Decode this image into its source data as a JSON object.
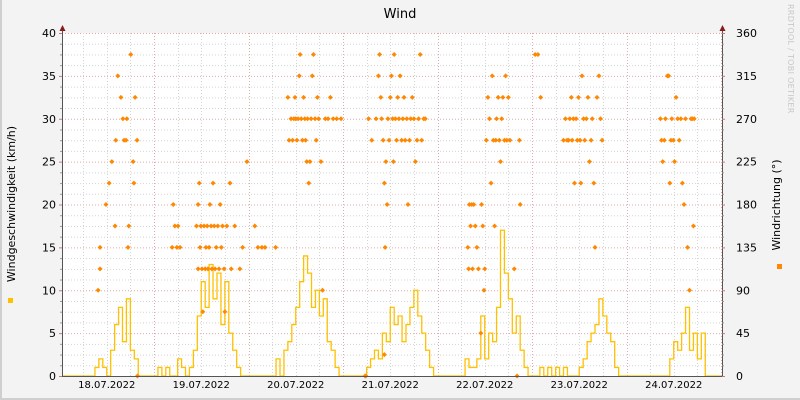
{
  "chart_data": {
    "type": "line+scatter",
    "title": "Wind",
    "ylabel_left": "Windgeschwindigkeit (km/h)",
    "ylabel_right": "Windrichtung (°)",
    "watermark": "RRDTOOL / TOBI OETIKER",
    "ylim_left": [
      0,
      40
    ],
    "ylim_right": [
      0,
      360
    ],
    "yticks_left": [
      "0",
      "5",
      "10",
      "15",
      "20",
      "25",
      "30",
      "35",
      "40"
    ],
    "yticks_right": [
      "0",
      "45",
      "90",
      "135",
      "180",
      "225",
      "270",
      "315",
      "360"
    ],
    "xtick_labels": [
      "18.07.2022",
      "19.07.2022",
      "20.07.2022",
      "21.07.2022",
      "22.07.2022",
      "23.07.2022",
      "24.07.2022"
    ],
    "grid": true,
    "colors": {
      "speed": "#ffc000",
      "direction": "#ff8800",
      "major_grid": "#e2a8a8",
      "minor_grid": "#d4d4d4",
      "axis": "#555555",
      "arrow": "#8b1a1a"
    },
    "speed_hourly": [
      {
        "date": "18.07.2022",
        "values": [
          0,
          0,
          0,
          0,
          0,
          0,
          0,
          0,
          0,
          1,
          2,
          1,
          0,
          3,
          6,
          8,
          4,
          9,
          3,
          2,
          0,
          0,
          0,
          0
        ]
      },
      {
        "date": "19.07.2022",
        "values": [
          0,
          1,
          0,
          1,
          0,
          0,
          2,
          1,
          0,
          1,
          3,
          7,
          11,
          8,
          13,
          9,
          12,
          6,
          11,
          5,
          3,
          1,
          0,
          0
        ]
      },
      {
        "date": "20.07.2022",
        "values": [
          0,
          0,
          0,
          0,
          0,
          0,
          0,
          2,
          0,
          3,
          4,
          6,
          8,
          11,
          14,
          12,
          8,
          10,
          7,
          9,
          4,
          3,
          1,
          0
        ]
      },
      {
        "date": "21.07.2022",
        "values": [
          0,
          0,
          0,
          0,
          0,
          0,
          1,
          2,
          3,
          2,
          5,
          4,
          8,
          6,
          7,
          4,
          6,
          8,
          10,
          7,
          5,
          3,
          1,
          0
        ]
      },
      {
        "date": "22.07.2022",
        "values": [
          0,
          0,
          0,
          0,
          0,
          0,
          0,
          2,
          1,
          1,
          2,
          7,
          2,
          5,
          4,
          8,
          17,
          12,
          9,
          5,
          7,
          3,
          1,
          0
        ]
      },
      {
        "date": "23.07.2022",
        "values": [
          0,
          0,
          1,
          0,
          1,
          0,
          1,
          0,
          1,
          0,
          0,
          0,
          1,
          2,
          4,
          5,
          6,
          9,
          7,
          5,
          4,
          1,
          0,
          0
        ]
      },
      {
        "date": "24.07.2022",
        "values": [
          0,
          0,
          0,
          0,
          0,
          0,
          0,
          0,
          0,
          0,
          0,
          2,
          4,
          3,
          5,
          8,
          3,
          5,
          2,
          5,
          0,
          0,
          0,
          0
        ]
      }
    ],
    "direction_points": [
      {
        "date": "18.07.2022",
        "points": [
          [
            9.8,
            90
          ],
          [
            10.3,
            112.5
          ],
          [
            10.3,
            135
          ],
          [
            11.8,
            180
          ],
          [
            12.6,
            202.5
          ],
          [
            13.3,
            225
          ],
          [
            14.1,
            157.5
          ],
          [
            14.3,
            247.5
          ],
          [
            14.8,
            315
          ],
          [
            15.6,
            292.5
          ],
          [
            16.1,
            270
          ],
          [
            16.4,
            247.5
          ],
          [
            16.9,
            247.5
          ],
          [
            17.1,
            270
          ],
          [
            17.4,
            135
          ],
          [
            17.6,
            157.5
          ],
          [
            18.1,
            337.5
          ],
          [
            18.7,
            225
          ],
          [
            18.9,
            202.5
          ],
          [
            19.2,
            292.5
          ],
          [
            19.7,
            247.5
          ],
          [
            19.8,
            0
          ]
        ]
      },
      {
        "date": "19.07.2022",
        "points": [
          [
            4.6,
            135
          ],
          [
            4.9,
            180
          ],
          [
            5.3,
            157.5
          ],
          [
            5.8,
            135
          ],
          [
            6.1,
            157.5
          ],
          [
            6.6,
            135
          ],
          [
            10.8,
            157.5
          ],
          [
            11.2,
            112.5
          ],
          [
            11.2,
            180
          ],
          [
            11.5,
            202.5
          ],
          [
            11.7,
            135
          ],
          [
            11.9,
            157.5
          ],
          [
            12.2,
            112.5
          ],
          [
            12.4,
            67.5
          ],
          [
            12.7,
            157.5
          ],
          [
            13,
            112.5
          ],
          [
            13.2,
            135
          ],
          [
            13.5,
            157.5
          ],
          [
            13.7,
            112.5
          ],
          [
            14,
            135
          ],
          [
            14.2,
            180
          ],
          [
            14.5,
            157.5
          ],
          [
            14.7,
            112.5
          ],
          [
            15,
            202.5
          ],
          [
            15.3,
            157.5
          ],
          [
            15.5,
            112.5
          ],
          [
            15.8,
            135
          ],
          [
            16.2,
            157.5
          ],
          [
            16.5,
            112.5
          ],
          [
            16.8,
            180
          ],
          [
            17.1,
            135
          ],
          [
            17.4,
            157.5
          ],
          [
            17.8,
            112.5
          ],
          [
            18,
            67.5
          ],
          [
            18.5,
            157.5
          ],
          [
            19.3,
            202.5
          ],
          [
            19.6,
            112.5
          ],
          [
            20.5,
            157.5
          ],
          [
            21.8,
            112.5
          ],
          [
            22.5,
            135
          ],
          [
            23.6,
            225
          ]
        ]
      },
      {
        "date": "20.07.2022",
        "points": [
          [
            1.6,
            157.5
          ],
          [
            2.4,
            135
          ],
          [
            3.4,
            135
          ],
          [
            4.2,
            135
          ],
          [
            6.9,
            135
          ],
          [
            10,
            292.5
          ],
          [
            10.3,
            247.5
          ],
          [
            10.8,
            270
          ],
          [
            11.2,
            247.5
          ],
          [
            11.5,
            270
          ],
          [
            11.8,
            292.5
          ],
          [
            12,
            270
          ],
          [
            12.3,
            247.5
          ],
          [
            12.6,
            270
          ],
          [
            12.9,
            315
          ],
          [
            13.1,
            337.5
          ],
          [
            13.4,
            270
          ],
          [
            13.7,
            247.5
          ],
          [
            14,
            292.5
          ],
          [
            14.3,
            270
          ],
          [
            14.5,
            247.5
          ],
          [
            14.8,
            225
          ],
          [
            15,
            270
          ],
          [
            15.3,
            202.5
          ],
          [
            15.6,
            225
          ],
          [
            15.9,
            270
          ],
          [
            16.2,
            315
          ],
          [
            16.5,
            337.5
          ],
          [
            16.9,
            270
          ],
          [
            17.2,
            247.5
          ],
          [
            17.5,
            292.5
          ],
          [
            17.8,
            270
          ],
          [
            18.4,
            225
          ],
          [
            18.8,
            90
          ],
          [
            19.5,
            270
          ],
          [
            20.2,
            270
          ],
          [
            20.8,
            292.5
          ],
          [
            21.5,
            270
          ],
          [
            22.4,
            270
          ],
          [
            23.5,
            270
          ]
        ]
      },
      {
        "date": "21.07.2022",
        "points": [
          [
            5.6,
            0
          ],
          [
            5.8,
            0
          ],
          [
            6.5,
            270
          ],
          [
            7.3,
            247.5
          ],
          [
            8.4,
            270
          ],
          [
            9,
            315
          ],
          [
            9.3,
            337.5
          ],
          [
            9.6,
            292.5
          ],
          [
            9.8,
            270
          ],
          [
            10.2,
            247.5
          ],
          [
            10.5,
            202.5
          ],
          [
            10.5,
            22.5
          ],
          [
            10.7,
            135
          ],
          [
            10.9,
            225
          ],
          [
            11.2,
            180
          ],
          [
            11.4,
            270
          ],
          [
            11.7,
            247.5
          ],
          [
            12,
            292.5
          ],
          [
            12.3,
            315
          ],
          [
            12.6,
            270
          ],
          [
            12.8,
            225
          ],
          [
            13,
            337.5
          ],
          [
            13.3,
            270
          ],
          [
            13.6,
            247.5
          ],
          [
            13.9,
            292.5
          ],
          [
            14.2,
            270
          ],
          [
            14.5,
            315
          ],
          [
            14.9,
            247.5
          ],
          [
            15.2,
            270
          ],
          [
            15.5,
            292.5
          ],
          [
            15.8,
            247.5
          ],
          [
            16.2,
            270
          ],
          [
            16.5,
            180
          ],
          [
            16.9,
            247.5
          ],
          [
            17.2,
            270
          ],
          [
            17.6,
            292.5
          ],
          [
            18,
            270
          ],
          [
            18.4,
            225
          ],
          [
            18.8,
            247.5
          ],
          [
            19.2,
            270
          ],
          [
            19.6,
            337.5
          ],
          [
            20,
            247.5
          ],
          [
            20.5,
            270
          ],
          [
            20.9,
            270
          ]
        ]
      },
      {
        "date": "22.07.2022",
        "points": [
          [
            7.7,
            135
          ],
          [
            7.9,
            112.5
          ],
          [
            8.1,
            180
          ],
          [
            8.4,
            157.5
          ],
          [
            8.7,
            180
          ],
          [
            8.9,
            112.5
          ],
          [
            9.2,
            180
          ],
          [
            9.6,
            157.5
          ],
          [
            10,
            135
          ],
          [
            10.4,
            112.5
          ],
          [
            11,
            45
          ],
          [
            11.2,
            180
          ],
          [
            11.5,
            157.5
          ],
          [
            11.8,
            90
          ],
          [
            12,
            112.5
          ],
          [
            12.4,
            247.5
          ],
          [
            12.8,
            292.5
          ],
          [
            13.2,
            270
          ],
          [
            13.6,
            202.5
          ],
          [
            13.9,
            315
          ],
          [
            14.2,
            247.5
          ],
          [
            14.5,
            157.5
          ],
          [
            14.8,
            247.5
          ],
          [
            15,
            270
          ],
          [
            15.4,
            292.5
          ],
          [
            15.7,
            247.5
          ],
          [
            16,
            225
          ],
          [
            16.3,
            270
          ],
          [
            16.6,
            292.5
          ],
          [
            17,
            247.5
          ],
          [
            17.3,
            315
          ],
          [
            17.6,
            247.5
          ],
          [
            18,
            292.5
          ],
          [
            18.4,
            247.5
          ],
          [
            19.5,
            112.5
          ],
          [
            20.2,
            0
          ],
          [
            20.8,
            247.5
          ],
          [
            21,
            180
          ]
        ]
      },
      {
        "date": "23.07.2022",
        "points": [
          [
            0.8,
            337.5
          ],
          [
            1.5,
            337.5
          ],
          [
            2.2,
            292.5
          ],
          [
            8,
            247.5
          ],
          [
            8.5,
            270
          ],
          [
            8.9,
            247.5
          ],
          [
            9.3,
            247.5
          ],
          [
            9.6,
            270
          ],
          [
            10,
            292.5
          ],
          [
            10.2,
            247.5
          ],
          [
            10.5,
            270
          ],
          [
            10.8,
            202.5
          ],
          [
            11.2,
            270
          ],
          [
            11.5,
            247.5
          ],
          [
            11.8,
            292.5
          ],
          [
            12.2,
            247.5
          ],
          [
            12.4,
            202.5
          ],
          [
            12.7,
            315
          ],
          [
            13.1,
            270
          ],
          [
            13.4,
            247.5
          ],
          [
            13.8,
            270
          ],
          [
            14.2,
            292.5
          ],
          [
            14.6,
            225
          ],
          [
            15,
            247.5
          ],
          [
            15.3,
            270
          ],
          [
            15.7,
            202.5
          ],
          [
            16,
            135
          ],
          [
            16.5,
            292.5
          ],
          [
            17,
            315
          ],
          [
            17.4,
            270
          ],
          [
            17.8,
            247.5
          ]
        ]
      },
      {
        "date": "24.07.2022",
        "points": [
          [
            8.6,
            270
          ],
          [
            8.9,
            247.5
          ],
          [
            9.2,
            225
          ],
          [
            9.6,
            247.5
          ],
          [
            9.9,
            270
          ],
          [
            10.4,
            315
          ],
          [
            10.7,
            315
          ],
          [
            11,
            202.5
          ],
          [
            11.3,
            247.5
          ],
          [
            11.5,
            270
          ],
          [
            11.9,
            247.5
          ],
          [
            12.2,
            225
          ],
          [
            12.6,
            292.5
          ],
          [
            13,
            270
          ],
          [
            13.4,
            247.5
          ],
          [
            13.8,
            270
          ],
          [
            14.2,
            202.5
          ],
          [
            14.6,
            180
          ],
          [
            15,
            270
          ],
          [
            15.5,
            135
          ],
          [
            16,
            90
          ],
          [
            16.4,
            270
          ],
          [
            16.7,
            270
          ],
          [
            17,
            157.5
          ],
          [
            17.2,
            270
          ]
        ]
      }
    ]
  }
}
